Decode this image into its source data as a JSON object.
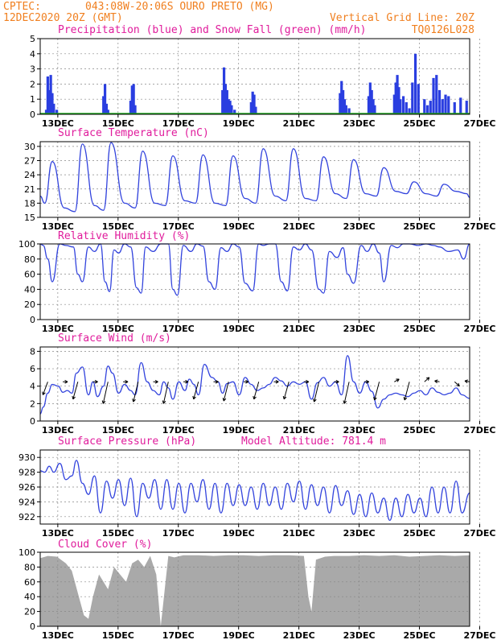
{
  "header": {
    "source": "CPTEC:",
    "location": "043:08W-20:06S  OURO PRETO (MG)",
    "run": "12DEC2020 20Z (GMT)",
    "grid_note": "Vertical Grid Line: 20Z",
    "code": "TQ0126L028"
  },
  "colors": {
    "precip": "#2a3ee0",
    "snow": "#1fa81f",
    "line": "#3344dd",
    "arrow": "#000000",
    "cloud": "#a9a9a9",
    "grid": "#888888",
    "header_text": "#f07f1f",
    "title_text": "#e01c9c"
  },
  "x_ticks": [
    "13DEC",
    "15DEC",
    "17DEC",
    "19DEC",
    "21DEC",
    "23DEC",
    "25DEC",
    "27DEC"
  ],
  "panels": [
    {
      "id": "precip",
      "title": "Precipitation (blue) and Snow Fall (green) (mm/h)",
      "extra": "",
      "yticks": [
        "0",
        "1",
        "2",
        "3",
        "4",
        "5"
      ]
    },
    {
      "id": "temp",
      "title": "Surface Temperature (nC)",
      "extra": "",
      "yticks": [
        "15",
        "18",
        "21",
        "24",
        "27",
        "30"
      ]
    },
    {
      "id": "rh",
      "title": "Relative Humidity (%)",
      "extra": "",
      "yticks": [
        "0",
        "20",
        "40",
        "60",
        "80",
        "100"
      ]
    },
    {
      "id": "wind",
      "title": "Surface Wind (m/s)",
      "extra": "",
      "yticks": [
        "0",
        "2",
        "4",
        "6",
        "8"
      ]
    },
    {
      "id": "pres",
      "title": "Surface Pressure (hPa)",
      "extra": "Model Altitude: 781.4 m",
      "yticks": [
        "922",
        "924",
        "926",
        "928",
        "930"
      ]
    },
    {
      "id": "cloud",
      "title": "Cloud Cover (%)",
      "extra": "",
      "yticks": [
        "0",
        "20",
        "40",
        "60",
        "80",
        "100"
      ]
    }
  ],
  "chart_data": [
    {
      "type": "bar",
      "title": "Precipitation (blue) and Snow Fall (green) (mm/h)",
      "ylabel": "mm/h",
      "ylim": [
        0,
        5
      ],
      "grid": true,
      "series": [
        {
          "name": "Precipitation",
          "color": "blue",
          "x": [
            12.95,
            13.0,
            13.05,
            13.1,
            13.15,
            13.2,
            13.3,
            14.85,
            14.9,
            14.95,
            15.0,
            15.75,
            15.8,
            15.85,
            15.9,
            18.8,
            18.85,
            18.9,
            18.95,
            19.0,
            19.05,
            19.1,
            19.2,
            19.75,
            19.8,
            19.85,
            19.9,
            22.7,
            22.75,
            22.8,
            22.85,
            22.9,
            23.0,
            23.65,
            23.7,
            23.75,
            23.8,
            23.85,
            24.5,
            24.55,
            24.6,
            24.65,
            24.7,
            24.8,
            24.9,
            25.0,
            25.1,
            25.2,
            25.3,
            25.5,
            25.6,
            25.7,
            25.8,
            25.9,
            26.0,
            26.1,
            26.2,
            26.3,
            26.5,
            26.7,
            26.9
          ],
          "values": [
            0.3,
            2.5,
            1.6,
            2.6,
            1.4,
            0.7,
            0.3,
            1.2,
            2.0,
            0.7,
            0.3,
            0.9,
            1.9,
            2.0,
            0.6,
            1.6,
            3.1,
            2.0,
            1.6,
            1.0,
            0.9,
            0.6,
            0.3,
            0.8,
            1.5,
            1.3,
            0.5,
            1.4,
            2.2,
            1.6,
            1.0,
            0.6,
            0.4,
            1.2,
            2.1,
            1.6,
            1.0,
            0.6,
            1.3,
            2.1,
            2.6,
            1.8,
            1.0,
            1.2,
            0.8,
            0.4,
            2.1,
            4.0,
            2.0,
            1.0,
            0.6,
            0.9,
            2.4,
            2.6,
            1.6,
            1.0,
            1.3,
            1.2,
            0.8,
            1.1,
            0.9
          ]
        },
        {
          "name": "Snow Fall",
          "color": "green",
          "x": [
            12.75,
            27.0
          ],
          "values": [
            0,
            0
          ]
        }
      ]
    },
    {
      "type": "line",
      "title": "Surface Temperature (nC)",
      "ylabel": "nC",
      "ylim": [
        15,
        31
      ],
      "grid": true,
      "series": [
        {
          "name": "Temperature",
          "x": [
            12.75,
            12.9,
            13.15,
            13.55,
            13.9,
            14.15,
            14.55,
            14.85,
            15.1,
            15.55,
            15.9,
            16.15,
            16.55,
            16.9,
            17.15,
            17.55,
            17.9,
            18.15,
            18.55,
            18.9,
            19.15,
            19.55,
            19.9,
            20.15,
            20.55,
            20.9,
            21.15,
            21.55,
            21.9,
            22.15,
            22.55,
            22.9,
            23.15,
            23.55,
            23.9,
            24.15,
            24.55,
            24.9,
            25.15,
            25.55,
            25.9,
            26.15,
            26.55,
            26.9,
            27.0
          ],
          "values": [
            19.5,
            18,
            26.8,
            17,
            16.2,
            30.5,
            17.5,
            16.5,
            30.8,
            18,
            17,
            29,
            18,
            17.5,
            28,
            18.5,
            18,
            28.2,
            18,
            17.5,
            28,
            19,
            18,
            29.5,
            19.5,
            18.5,
            29.5,
            19,
            18.5,
            27.8,
            20,
            19,
            27.2,
            20,
            19.5,
            25.5,
            20.5,
            20,
            22.5,
            20,
            19.5,
            22,
            20.5,
            20,
            19.2
          ]
        }
      ]
    },
    {
      "type": "line",
      "title": "Relative Humidity (%)",
      "ylabel": "%",
      "ylim": [
        0,
        100
      ],
      "grid": true,
      "series": [
        {
          "name": "Relative Humidity",
          "x": [
            12.75,
            12.85,
            13.0,
            13.15,
            13.4,
            13.6,
            13.85,
            14.0,
            14.15,
            14.35,
            14.55,
            14.75,
            14.9,
            15.05,
            15.2,
            15.35,
            15.55,
            15.75,
            15.95,
            16.1,
            16.25,
            16.5,
            16.75,
            17.0,
            17.15,
            17.3,
            17.5,
            17.75,
            17.95,
            18.15,
            18.35,
            18.55,
            18.75,
            18.95,
            19.15,
            19.35,
            19.55,
            19.8,
            20.0,
            20.15,
            20.35,
            20.55,
            20.75,
            20.95,
            21.15,
            21.35,
            21.55,
            21.75,
            22.0,
            22.15,
            22.35,
            22.6,
            22.8,
            22.95,
            23.15,
            23.4,
            23.6,
            23.8,
            24.0,
            24.15,
            24.4,
            24.6,
            24.8,
            25.0,
            25.3,
            25.55,
            25.8,
            26.0,
            26.3,
            26.6,
            26.8,
            27.0
          ],
          "values": [
            100,
            98,
            80,
            50,
            100,
            98,
            96,
            60,
            50,
            96,
            90,
            100,
            50,
            37,
            92,
            88,
            100,
            96,
            42,
            35,
            96,
            90,
            100,
            100,
            40,
            32,
            98,
            90,
            100,
            97,
            50,
            40,
            95,
            90,
            100,
            96,
            48,
            38,
            100,
            98,
            100,
            100,
            50,
            38,
            96,
            92,
            100,
            92,
            40,
            35,
            90,
            82,
            95,
            60,
            48,
            98,
            90,
            100,
            88,
            50,
            98,
            95,
            100,
            100,
            98,
            100,
            98,
            96,
            90,
            92,
            80,
            100
          ]
        }
      ]
    },
    {
      "type": "line",
      "title": "Surface Wind (m/s)",
      "ylabel": "m/s",
      "ylim": [
        0,
        8.5
      ],
      "grid": true,
      "series": [
        {
          "name": "Wind Speed",
          "x": [
            12.75,
            12.85,
            13.0,
            13.15,
            13.35,
            13.5,
            13.65,
            13.8,
            13.95,
            14.15,
            14.35,
            14.5,
            14.65,
            14.85,
            15.0,
            15.15,
            15.35,
            15.55,
            15.75,
            15.9,
            16.1,
            16.3,
            16.5,
            16.7,
            16.85,
            17.0,
            17.15,
            17.35,
            17.55,
            17.7,
            17.85,
            18.0,
            18.2,
            18.45,
            18.65,
            18.8,
            18.95,
            19.15,
            19.35,
            19.55,
            19.75,
            19.95,
            20.15,
            20.35,
            20.55,
            20.75,
            20.95,
            21.15,
            21.35,
            21.55,
            21.75,
            21.95,
            22.15,
            22.35,
            22.55,
            22.75,
            22.95,
            23.15,
            23.35,
            23.55,
            23.75,
            23.95,
            24.15,
            24.35,
            24.55,
            24.75,
            24.95,
            25.15,
            25.35,
            25.55,
            25.75,
            25.95,
            26.15,
            26.35,
            26.55,
            26.75,
            27.0
          ],
          "values": [
            0.8,
            1.6,
            3.2,
            4.2,
            4,
            3.3,
            3.5,
            3.2,
            5.5,
            6.2,
            3,
            4.5,
            2.8,
            4,
            6.3,
            5.5,
            3.2,
            4.2,
            3.5,
            3,
            6.7,
            4.5,
            3.5,
            3,
            4.5,
            3.8,
            2.5,
            4.5,
            3.5,
            4.8,
            4.2,
            3,
            6.5,
            5,
            4.5,
            3.2,
            4.3,
            4.5,
            3,
            5,
            4.2,
            3.5,
            3.8,
            4.2,
            5,
            4.6,
            4,
            4.5,
            4.2,
            4.5,
            2.5,
            4.4,
            5,
            4,
            4.5,
            3,
            7.5,
            4.5,
            3.2,
            4.5,
            3.4,
            1.5,
            2.5,
            3,
            3.2,
            3,
            2.8,
            3.2,
            3.5,
            3,
            3.8,
            3.3,
            3,
            3.2,
            3.8,
            3,
            2.6
          ]
        }
      ],
      "arrows": {
        "name": "Wind Direction",
        "x": [
          13.0,
          13.5,
          14.0,
          14.5,
          15.0,
          15.5,
          16.0,
          16.5,
          17.0,
          17.5,
          18.0,
          18.5,
          19.0,
          19.5,
          20.0,
          20.5,
          21.0,
          21.5,
          22.0,
          22.5,
          23.0,
          23.5,
          24.0,
          24.5,
          25.0,
          25.5,
          26.0,
          26.5,
          27.0
        ],
        "values": [
          3.0,
          4.5,
          2.5,
          4.5,
          2.0,
          4.5,
          2.2,
          4.5,
          2.0,
          4.5,
          2.5,
          4.5,
          2.3,
          4.5,
          2.5,
          4.5,
          2.5,
          4.5,
          2.2,
          4.5,
          2.0,
          4.5,
          2.4,
          4.8,
          2.4,
          5.0,
          4.6,
          4.0,
          4.6
        ]
      }
    },
    {
      "type": "line",
      "title": "Surface Pressure (hPa)",
      "ylabel": "hPa",
      "ylim": [
        921,
        931
      ],
      "grid": true,
      "series": [
        {
          "name": "Pressure",
          "x": [
            12.75,
            12.9,
            13.05,
            13.2,
            13.4,
            13.6,
            13.8,
            13.95,
            14.15,
            14.35,
            14.55,
            14.75,
            14.95,
            15.15,
            15.35,
            15.55,
            15.75,
            15.95,
            16.15,
            16.35,
            16.55,
            16.75,
            16.95,
            17.15,
            17.35,
            17.55,
            17.75,
            17.95,
            18.15,
            18.35,
            18.55,
            18.75,
            18.95,
            19.15,
            19.35,
            19.55,
            19.75,
            19.95,
            20.15,
            20.35,
            20.55,
            20.75,
            20.95,
            21.15,
            21.35,
            21.55,
            21.75,
            21.95,
            22.15,
            22.35,
            22.55,
            22.75,
            22.95,
            23.15,
            23.35,
            23.55,
            23.75,
            23.95,
            24.15,
            24.35,
            24.55,
            24.75,
            24.95,
            25.15,
            25.35,
            25.55,
            25.75,
            25.95,
            26.15,
            26.35,
            26.55,
            26.75,
            27.0
          ],
          "values": [
            928.2,
            928,
            928.8,
            928,
            929.2,
            927,
            927.5,
            929.6,
            926.5,
            925,
            927.5,
            922.5,
            926.8,
            924.5,
            927,
            923.5,
            927.2,
            922,
            926.5,
            924.5,
            927,
            923,
            927,
            923,
            926.5,
            922.5,
            926.5,
            924,
            927,
            923,
            926.5,
            922.5,
            926.5,
            923.5,
            926.3,
            923.5,
            926,
            923,
            926.5,
            923.5,
            926,
            923,
            926.5,
            924,
            926.8,
            923,
            926.3,
            923.5,
            926,
            922.5,
            926.2,
            923.5,
            925.5,
            922.3,
            925,
            922,
            925.2,
            922.5,
            924.5,
            921.5,
            924.5,
            922,
            925,
            922.5,
            924.5,
            922,
            926,
            922.5,
            926,
            922.5,
            926.8,
            922.5,
            925.2
          ]
        }
      ]
    },
    {
      "type": "area",
      "title": "Cloud Cover (%)",
      "ylabel": "%",
      "ylim": [
        0,
        100
      ],
      "grid": true,
      "series": [
        {
          "name": "Cloud Cover",
          "x": [
            12.75,
            13.0,
            13.3,
            13.6,
            13.8,
            14.0,
            14.2,
            14.35,
            14.5,
            14.7,
            14.85,
            15.0,
            15.2,
            15.4,
            15.6,
            15.8,
            16.0,
            16.2,
            16.4,
            16.6,
            16.75,
            17.0,
            17.2,
            17.5,
            18.0,
            18.5,
            19.0,
            19.5,
            20.0,
            20.5,
            21.0,
            21.5,
            21.65,
            21.75,
            21.9,
            22.2,
            22.5,
            23.0,
            23.5,
            24.0,
            24.5,
            25.0,
            25.5,
            26.0,
            26.5,
            27.0
          ],
          "values": [
            92,
            95,
            94,
            85,
            75,
            45,
            15,
            10,
            40,
            70,
            60,
            50,
            80,
            70,
            60,
            85,
            90,
            80,
            95,
            70,
            0,
            95,
            93,
            96,
            96,
            95,
            96,
            96,
            95,
            96,
            96,
            95,
            40,
            20,
            90,
            94,
            95,
            95,
            96,
            95,
            96,
            94,
            95,
            96,
            95,
            96
          ]
        }
      ]
    }
  ]
}
